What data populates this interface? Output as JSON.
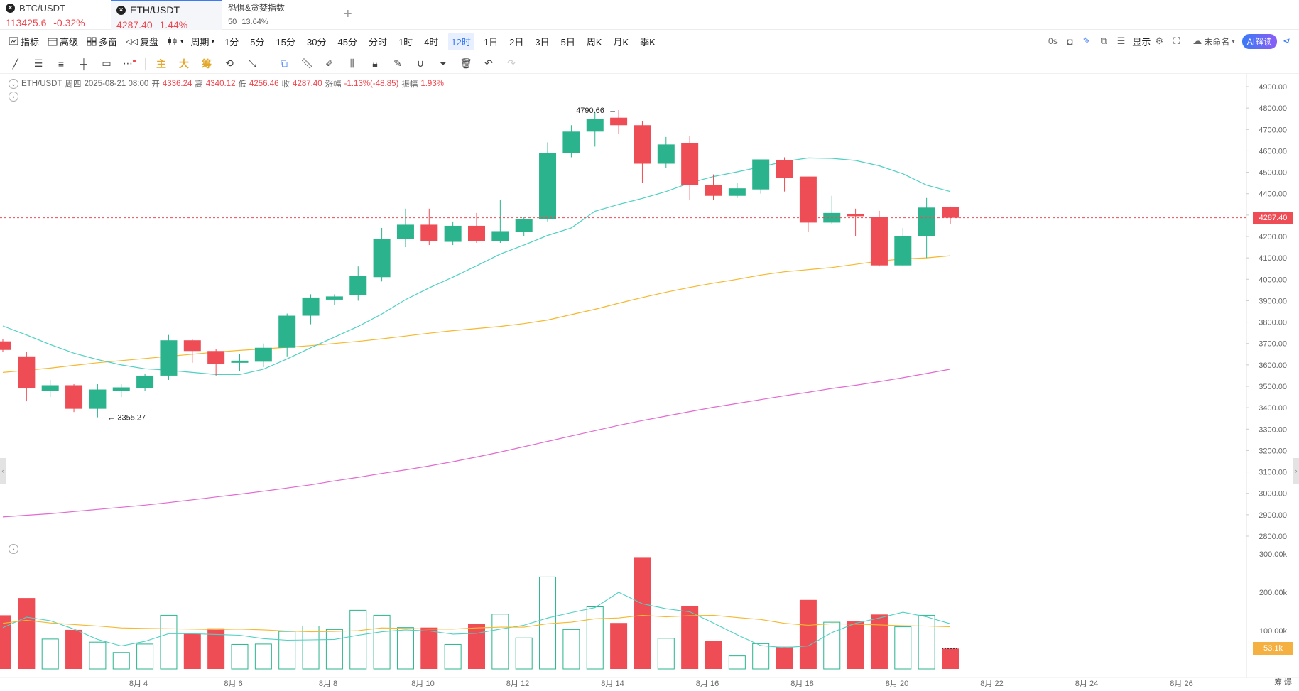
{
  "tabs": [
    {
      "name": "BTC/USDT",
      "price": "113425.6",
      "change": "-0.32%",
      "active": false
    },
    {
      "name": "ETH/USDT",
      "price": "4287.40",
      "change": "1.44%",
      "active": true
    },
    {
      "name": "恐惧&贪婪指数",
      "price": "50",
      "change": "13.64%",
      "active": false
    }
  ],
  "tab_add": "+",
  "toolbar": {
    "indicator": "指标",
    "advanced": "高级",
    "multi_window": "多窗",
    "replay": "复盘",
    "period_label": "周期",
    "periods": [
      "1分",
      "5分",
      "15分",
      "30分",
      "45分",
      "分时",
      "1时",
      "4时",
      "12时",
      "1日",
      "2日",
      "3日",
      "5日",
      "周K",
      "月K",
      "季K"
    ],
    "active_period": "12时",
    "countdown": "0s",
    "display": "显示",
    "cloud_name": "未命名",
    "ai_label": "AI解读"
  },
  "drawing_tools": {
    "main": "主",
    "big": "大",
    "chip": "筹"
  },
  "info_bar": {
    "symbol": "ETH/USDT",
    "weekday": "周四",
    "datetime": "2025-08-21 08:00",
    "open_label": "开",
    "open": "4336.24",
    "high_label": "高",
    "high": "4340.12",
    "low_label": "低",
    "low": "4256.46",
    "close_label": "收",
    "close": "4287.40",
    "change_label": "涨幅",
    "change": "-1.13%(-48.85)",
    "amp_label": "振幅",
    "amp": "1.93%"
  },
  "colors": {
    "up": "#2bb38d",
    "down": "#ee4d55",
    "ma_fast": "#4fd0c3",
    "ma_mid": "#f5b82e",
    "ma_slow": "#e26ad0",
    "last_price": "#ee4d55",
    "vol_last": "#f5b042"
  },
  "chart_data": {
    "type": "candlestick",
    "symbol": "ETH/USDT",
    "interval": "12h",
    "ylim": [
      2750,
      4950
    ],
    "price_ticks": [
      "4900.00",
      "4800.00",
      "4700.00",
      "4600.00",
      "4500.00",
      "4400.00",
      "4300.00",
      "4200.00",
      "4100.00",
      "4000.00",
      "3900.00",
      "3800.00",
      "3700.00",
      "3600.00",
      "3500.00",
      "3400.00",
      "3300.00",
      "3200.00",
      "3100.00",
      "3000.00",
      "2900.00",
      "2800.00"
    ],
    "x_labels": [
      "8月 4",
      "8月 6",
      "8月 8",
      "8月 10",
      "8月 12",
      "8月 14",
      "8月 16",
      "8月 18",
      "8月 20",
      "8月 22",
      "8月 24",
      "8月 26"
    ],
    "last_price": "4287.40",
    "max_label": "4790.66",
    "min_label": "3355.27",
    "candles": [
      {
        "o": 3710,
        "h": 3720,
        "l": 3660,
        "c": 3670
      },
      {
        "o": 3640,
        "h": 3660,
        "l": 3430,
        "c": 3490
      },
      {
        "o": 3480,
        "h": 3530,
        "l": 3450,
        "c": 3505
      },
      {
        "o": 3505,
        "h": 3510,
        "l": 3380,
        "c": 3395
      },
      {
        "o": 3395,
        "h": 3510,
        "l": 3355.27,
        "c": 3485
      },
      {
        "o": 3480,
        "h": 3510,
        "l": 3450,
        "c": 3495
      },
      {
        "o": 3490,
        "h": 3560,
        "l": 3480,
        "c": 3550
      },
      {
        "o": 3550,
        "h": 3740,
        "l": 3530,
        "c": 3715
      },
      {
        "o": 3715,
        "h": 3720,
        "l": 3610,
        "c": 3665
      },
      {
        "o": 3665,
        "h": 3675,
        "l": 3550,
        "c": 3605
      },
      {
        "o": 3610,
        "h": 3650,
        "l": 3570,
        "c": 3620
      },
      {
        "o": 3615,
        "h": 3700,
        "l": 3590,
        "c": 3680
      },
      {
        "o": 3680,
        "h": 3840,
        "l": 3640,
        "c": 3830
      },
      {
        "o": 3830,
        "h": 3930,
        "l": 3790,
        "c": 3915
      },
      {
        "o": 3905,
        "h": 3930,
        "l": 3880,
        "c": 3920
      },
      {
        "o": 3925,
        "h": 4060,
        "l": 3900,
        "c": 4015
      },
      {
        "o": 4010,
        "h": 4240,
        "l": 3990,
        "c": 4190
      },
      {
        "o": 4190,
        "h": 4330,
        "l": 4150,
        "c": 4255
      },
      {
        "o": 4255,
        "h": 4330,
        "l": 4160,
        "c": 4180
      },
      {
        "o": 4175,
        "h": 4270,
        "l": 4160,
        "c": 4250
      },
      {
        "o": 4250,
        "h": 4310,
        "l": 4170,
        "c": 4180
      },
      {
        "o": 4180,
        "h": 4370,
        "l": 4170,
        "c": 4225
      },
      {
        "o": 4220,
        "h": 4290,
        "l": 4200,
        "c": 4280
      },
      {
        "o": 4280,
        "h": 4640,
        "l": 4270,
        "c": 4590
      },
      {
        "o": 4590,
        "h": 4720,
        "l": 4570,
        "c": 4690
      },
      {
        "o": 4690,
        "h": 4780,
        "l": 4620,
        "c": 4750
      },
      {
        "o": 4755,
        "h": 4790.66,
        "l": 4680,
        "c": 4720
      },
      {
        "o": 4720,
        "h": 4740,
        "l": 4450,
        "c": 4540
      },
      {
        "o": 4540,
        "h": 4665,
        "l": 4520,
        "c": 4630
      },
      {
        "o": 4635,
        "h": 4670,
        "l": 4370,
        "c": 4440
      },
      {
        "o": 4440,
        "h": 4490,
        "l": 4370,
        "c": 4390
      },
      {
        "o": 4390,
        "h": 4450,
        "l": 4380,
        "c": 4425
      },
      {
        "o": 4420,
        "h": 4560,
        "l": 4400,
        "c": 4560
      },
      {
        "o": 4555,
        "h": 4570,
        "l": 4410,
        "c": 4475
      },
      {
        "o": 4480,
        "h": 4480,
        "l": 4220,
        "c": 4265
      },
      {
        "o": 4265,
        "h": 4390,
        "l": 4260,
        "c": 4310
      },
      {
        "o": 4305,
        "h": 4330,
        "l": 4200,
        "c": 4295
      },
      {
        "o": 4290,
        "h": 4320,
        "l": 4060,
        "c": 4065
      },
      {
        "o": 4065,
        "h": 4240,
        "l": 4060,
        "c": 4200
      },
      {
        "o": 4200,
        "h": 4380,
        "l": 4100,
        "c": 4335
      },
      {
        "o": 4336.24,
        "h": 4340.12,
        "l": 4256.46,
        "c": 4287.4
      }
    ],
    "ma_fast": [
      3782,
      3740,
      3695,
      3655,
      3625,
      3600,
      3582,
      3575,
      3565,
      3555,
      3555,
      3580,
      3628,
      3680,
      3730,
      3780,
      3838,
      3905,
      3960,
      4010,
      4063,
      4118,
      4160,
      4205,
      4240,
      4318,
      4350,
      4378,
      4410,
      4450,
      4480,
      4502,
      4525,
      4550,
      4567,
      4565,
      4555,
      4530,
      4493,
      4440,
      4410
    ],
    "ma_mid": [
      3565,
      3575,
      3585,
      3598,
      3610,
      3620,
      3630,
      3640,
      3650,
      3660,
      3668,
      3675,
      3682,
      3690,
      3700,
      3710,
      3722,
      3735,
      3748,
      3760,
      3770,
      3780,
      3793,
      3810,
      3835,
      3860,
      3888,
      3915,
      3940,
      3962,
      3982,
      4000,
      4020,
      4035,
      4045,
      4055,
      4070,
      4085,
      4095,
      4100,
      4110
    ],
    "ma_slow": [
      2890,
      2898,
      2905,
      2915,
      2925,
      2935,
      2945,
      2957,
      2970,
      2983,
      2996,
      3010,
      3025,
      3040,
      3058,
      3075,
      3093,
      3110,
      3128,
      3148,
      3170,
      3193,
      3218,
      3243,
      3268,
      3293,
      3318,
      3340,
      3361,
      3382,
      3402,
      3420,
      3438,
      3456,
      3472,
      3490,
      3505,
      3522,
      3540,
      3560,
      3580
    ],
    "volume": {
      "ticks": [
        "300.00k",
        "200.00k",
        "100.00k"
      ],
      "last_label": "53.1k",
      "values": [
        140,
        185,
        78,
        102,
        70,
        43,
        65,
        140,
        92,
        106,
        64,
        65,
        98,
        112,
        103,
        153,
        140,
        108,
        108,
        64,
        118,
        143,
        81,
        240,
        103,
        162,
        120,
        290,
        80,
        164,
        74,
        34,
        66,
        58,
        180,
        122,
        124,
        142,
        110,
        140,
        53.1
      ],
      "ma_fast": [
        108,
        135,
        126,
        104,
        77,
        60,
        72,
        92,
        92,
        90,
        88,
        79,
        75,
        76,
        77,
        88,
        97,
        102,
        99,
        91,
        93,
        104,
        114,
        133,
        147,
        160,
        200,
        170,
        157,
        149,
        120,
        89,
        61,
        56,
        60,
        95,
        119,
        133,
        148,
        136,
        118
      ],
      "ma_mid": [
        119,
        127,
        120,
        116,
        112,
        107,
        106,
        105,
        104,
        103,
        104,
        102,
        99,
        97,
        98,
        100,
        107,
        106,
        104,
        104,
        107,
        109,
        109,
        118,
        122,
        131,
        133,
        140,
        136,
        139,
        140,
        134,
        129,
        119,
        114,
        118,
        117,
        115,
        113,
        112,
        110
      ]
    }
  }
}
